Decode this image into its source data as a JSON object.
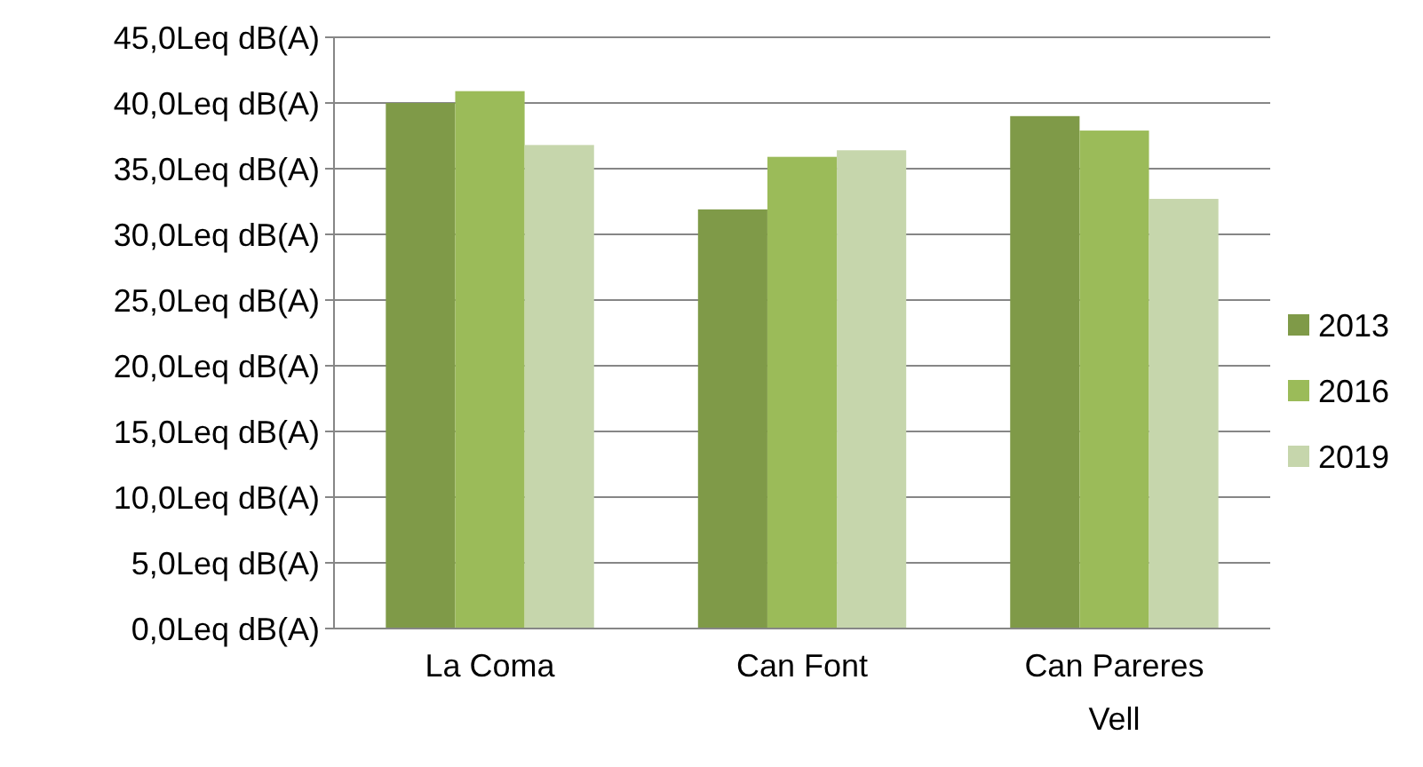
{
  "chart_data": {
    "type": "bar",
    "categories": [
      "La Coma",
      "Can Font",
      "Can Pareres Vell"
    ],
    "series": [
      {
        "name": "2013",
        "color": "#7f9a48",
        "values": [
          40.0,
          31.9,
          39.0
        ]
      },
      {
        "name": "2016",
        "color": "#9bbb59",
        "values": [
          40.9,
          35.9,
          37.9
        ]
      },
      {
        "name": "2019",
        "color": "#c6d6ac",
        "values": [
          36.8,
          36.4,
          32.7
        ]
      }
    ],
    "ylim": [
      0,
      45
    ],
    "yticks": [
      {
        "value": 0,
        "label": "0,0Leq dB(A)"
      },
      {
        "value": 5,
        "label": "5,0Leq dB(A)"
      },
      {
        "value": 10,
        "label": "10,0Leq dB(A)"
      },
      {
        "value": 15,
        "label": "15,0Leq dB(A)"
      },
      {
        "value": 20,
        "label": "20,0Leq dB(A)"
      },
      {
        "value": 25,
        "label": "25,0Leq dB(A)"
      },
      {
        "value": 30,
        "label": "30,0Leq dB(A)"
      },
      {
        "value": 35,
        "label": "35,0Leq dB(A)"
      },
      {
        "value": 40,
        "label": "40,0Leq dB(A)"
      },
      {
        "value": 45,
        "label": "45,0Leq dB(A)"
      }
    ],
    "grid": "y",
    "legend": "right"
  }
}
